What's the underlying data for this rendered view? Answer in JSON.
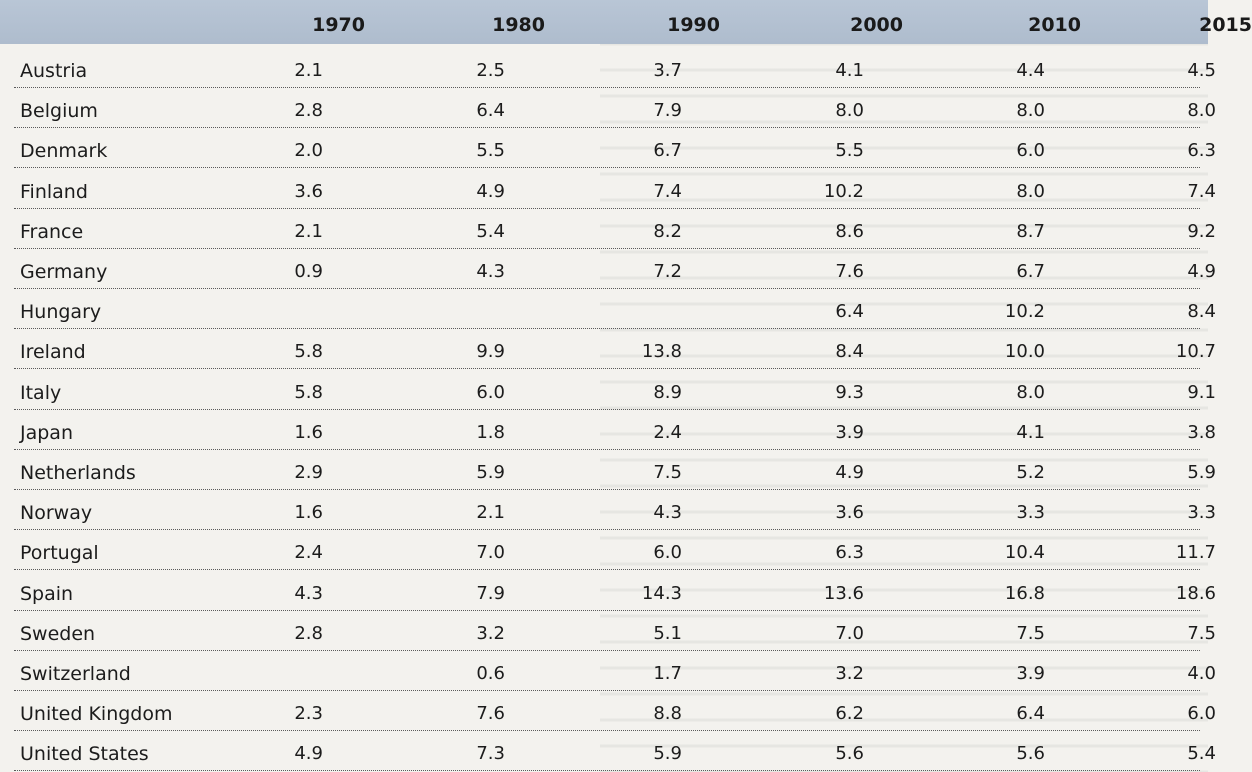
{
  "table": {
    "columns": [
      "1970",
      "1980",
      "1990",
      "2000",
      "2010",
      "2015"
    ],
    "rows": [
      {
        "country": "Austria",
        "values": [
          "2.1",
          "2.5",
          "3.7",
          "4.1",
          "4.4",
          "4.5"
        ]
      },
      {
        "country": "Belgium",
        "values": [
          "2.8",
          "6.4",
          "7.9",
          "8.0",
          "8.0",
          "8.0"
        ]
      },
      {
        "country": "Denmark",
        "values": [
          "2.0",
          "5.5",
          "6.7",
          "5.5",
          "6.0",
          "6.3"
        ]
      },
      {
        "country": "Finland",
        "values": [
          "3.6",
          "4.9",
          "7.4",
          "10.2",
          "8.0",
          "7.4"
        ]
      },
      {
        "country": "France",
        "values": [
          "2.1",
          "5.4",
          "8.2",
          "8.6",
          "8.7",
          "9.2"
        ]
      },
      {
        "country": "Germany",
        "values": [
          "0.9",
          "4.3",
          "7.2",
          "7.6",
          "6.7",
          "4.9"
        ]
      },
      {
        "country": "Hungary",
        "values": [
          "",
          "",
          "",
          "6.4",
          "10.2",
          "8.4"
        ]
      },
      {
        "country": "Ireland",
        "values": [
          "5.8",
          "9.9",
          "13.8",
          "8.4",
          "10.0",
          "10.7"
        ]
      },
      {
        "country": "Italy",
        "values": [
          "5.8",
          "6.0",
          "8.9",
          "9.3",
          "8.0",
          "9.1"
        ]
      },
      {
        "country": "Japan",
        "values": [
          "1.6",
          "1.8",
          "2.4",
          "3.9",
          "4.1",
          "3.8"
        ]
      },
      {
        "country": "Netherlands",
        "values": [
          "2.9",
          "5.9",
          "7.5",
          "4.9",
          "5.2",
          "5.9"
        ]
      },
      {
        "country": "Norway",
        "values": [
          "1.6",
          "2.1",
          "4.3",
          "3.6",
          "3.3",
          "3.3"
        ]
      },
      {
        "country": "Portugal",
        "values": [
          "2.4",
          "7.0",
          "6.0",
          "6.3",
          "10.4",
          "11.7"
        ]
      },
      {
        "country": "Spain",
        "values": [
          "4.3",
          "7.9",
          "14.3",
          "13.6",
          "16.8",
          "18.6"
        ]
      },
      {
        "country": "Sweden",
        "values": [
          "2.8",
          "3.2",
          "5.1",
          "7.0",
          "7.5",
          "7.5"
        ]
      },
      {
        "country": "Switzerland",
        "values": [
          "",
          "0.6",
          "1.7",
          "3.2",
          "3.9",
          "4.0"
        ]
      },
      {
        "country": "United Kingdom",
        "values": [
          "2.3",
          "7.6",
          "8.8",
          "6.2",
          "6.4",
          "6.0"
        ]
      },
      {
        "country": "United States",
        "values": [
          "4.9",
          "7.3",
          "5.9",
          "5.6",
          "5.6",
          "5.4"
        ]
      }
    ]
  },
  "colors": {
    "header_band": "#b9c6d6",
    "page_background": "#f3f2ee",
    "text": "#1c1c1c"
  }
}
